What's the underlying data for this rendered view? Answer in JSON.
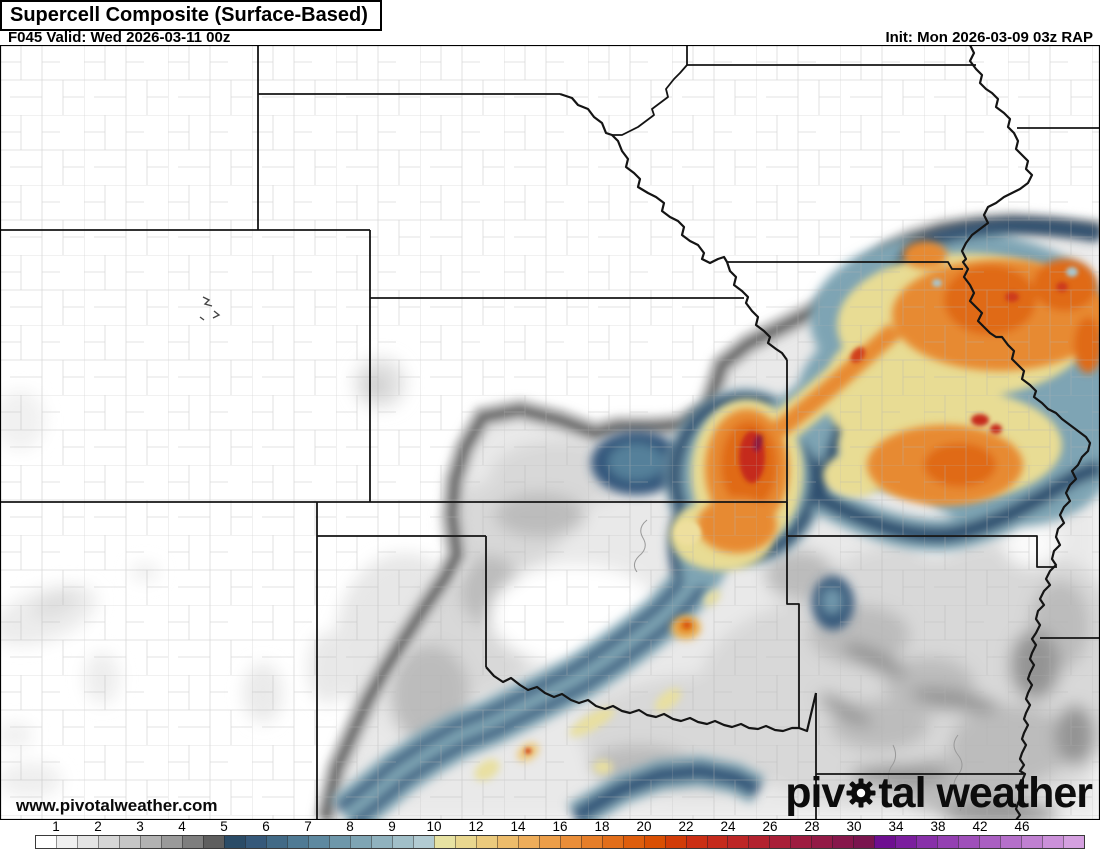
{
  "header": {
    "title": "Supercell Composite (Surface-Based)",
    "valid": "F045 Valid: Wed 2026-03-11 00z",
    "init": "Init: Mon 2026-03-09 03z RAP"
  },
  "watermark": "www.pivotalweather.com",
  "logo": {
    "left": "piv",
    "right": "tal weather"
  },
  "colorbar": {
    "labels": [
      "1",
      "2",
      "3",
      "4",
      "5",
      "6",
      "7",
      "8",
      "9",
      "10",
      "12",
      "14",
      "16",
      "18",
      "20",
      "22",
      "24",
      "26",
      "28",
      "30",
      "34",
      "38",
      "42",
      "46"
    ],
    "segments": [
      "#ffffff",
      "#f0f0f0",
      "#e4e4e4",
      "#d6d6d6",
      "#c6c6c6",
      "#b2b2b2",
      "#9a9a9a",
      "#7e7e7e",
      "#5e5e5e",
      "#2b4c67",
      "#36597a",
      "#426a86",
      "#4f7a94",
      "#5e89a0",
      "#6e97aa",
      "#7fa5b4",
      "#90b2be",
      "#a1bfc8",
      "#b2cbd2",
      "#e7e2a2",
      "#e9d78f",
      "#ebca7d",
      "#edbc6b",
      "#eead5a",
      "#ec9e49",
      "#ea8e39",
      "#e67e29",
      "#e26e1a",
      "#de5e0d",
      "#d94f03",
      "#d23c08",
      "#cb2f14",
      "#c52a1c",
      "#bd2626",
      "#b3222f",
      "#a91f38",
      "#9e1c40",
      "#931a46",
      "#87174b",
      "#7a154e",
      "#6e0f90",
      "#7b1e9e",
      "#8830a9",
      "#9440b2",
      "#9f4fba",
      "#aa5fc2",
      "#b56fca",
      "#c080d1",
      "#cb90d9",
      "#d5a0e0"
    ]
  }
}
